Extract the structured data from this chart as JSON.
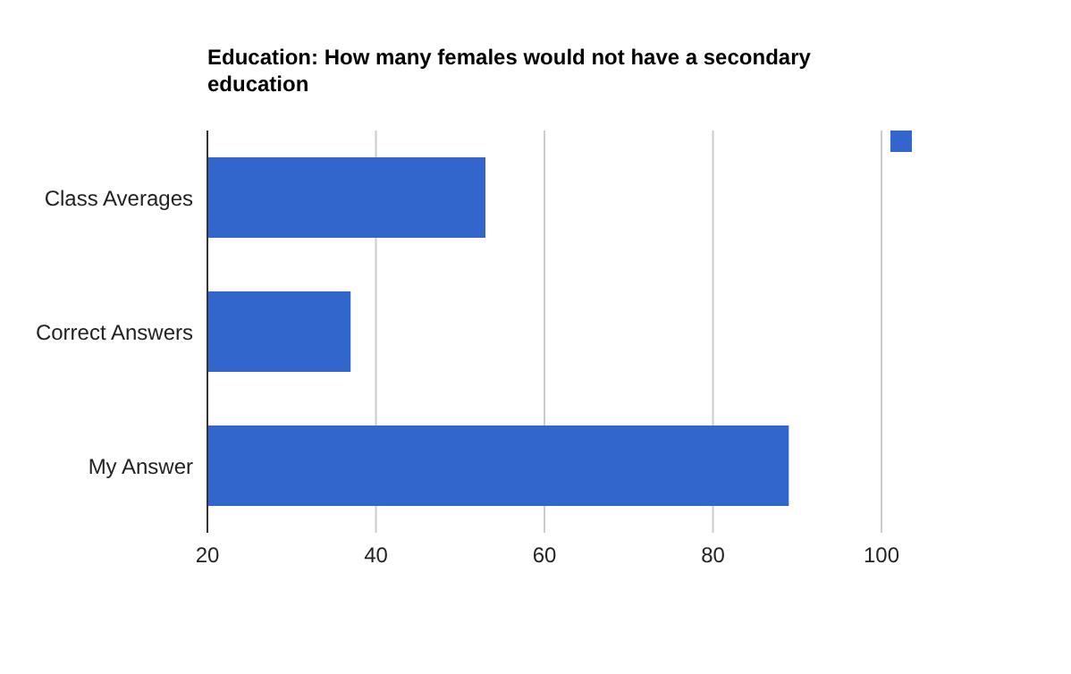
{
  "chart_data": {
    "type": "bar",
    "orientation": "horizontal",
    "title": "Education: How many females would not have a secondary education",
    "categories": [
      "Class Averages",
      "Correct Answers",
      "My Answer"
    ],
    "series": [
      {
        "color": "#3366cc",
        "values": [
          53,
          37,
          89
        ]
      }
    ],
    "xlim": [
      20,
      100
    ],
    "xticks": [
      20,
      40,
      60,
      80,
      100
    ],
    "grid": "x"
  }
}
